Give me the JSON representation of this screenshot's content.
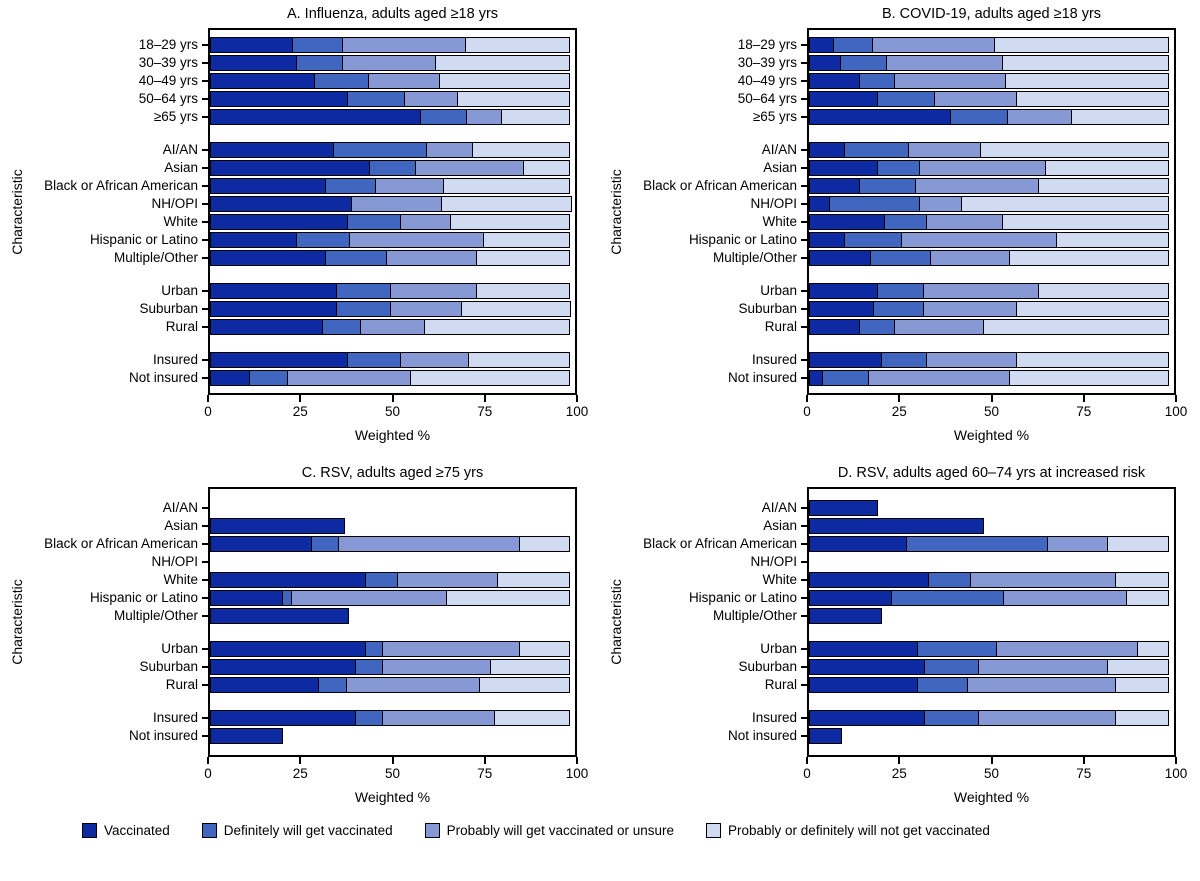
{
  "colors": {
    "vaccinated": "#0d2aa3",
    "definitely_will": "#4066c0",
    "probably_unsure": "#8799d4",
    "will_not": "#d0daf0",
    "bar_border": "#000000"
  },
  "legend": [
    {
      "label": "Vaccinated",
      "color_key": "vaccinated"
    },
    {
      "label": "Definitely will get vaccinated",
      "color_key": "definitely_will"
    },
    {
      "label": "Probably will get vaccinated or unsure",
      "color_key": "probably_unsure"
    },
    {
      "label": "Probably or definitely will not get vaccinated",
      "color_key": "will_not"
    }
  ],
  "chart_data": [
    {
      "type": "bar",
      "stacked": true,
      "orientation": "horizontal",
      "title": "A. Influenza, adults aged ≥18 yrs",
      "xlabel": "Weighted %",
      "ylabel": "Characteristic",
      "xlim": [
        0,
        100
      ],
      "xticks": [
        0,
        25,
        50,
        75,
        100
      ],
      "series_labels": [
        "Vaccinated",
        "Definitely will get vaccinated",
        "Probably will get vaccinated or unsure",
        "Probably or definitely will not get vaccinated"
      ],
      "groups": [
        {
          "rows": [
            {
              "label": "18–29 yrs",
              "values": [
                23,
                14,
                34,
                29
              ]
            },
            {
              "label": "30–39 yrs",
              "values": [
                24,
                13,
                26,
                37
              ]
            },
            {
              "label": "40–49 yrs",
              "values": [
                29,
                15,
                20,
                36
              ]
            },
            {
              "label": "50–64 yrs",
              "values": [
                38,
                16,
                15,
                31
              ]
            },
            {
              "label": "≥65 yrs",
              "values": [
                58,
                13,
                10,
                19
              ]
            }
          ]
        },
        {
          "rows": [
            {
              "label": "AI/AN",
              "values": [
                34,
                26,
                13,
                27
              ]
            },
            {
              "label": "Asian",
              "values": [
                44,
                13,
                30,
                13
              ]
            },
            {
              "label": "Black or African American",
              "values": [
                32,
                14,
                19,
                35
              ]
            },
            {
              "label": "NH/OPI",
              "values": [
                39,
                0,
                25,
                36
              ]
            },
            {
              "label": "White",
              "values": [
                38,
                15,
                14,
                33
              ]
            },
            {
              "label": "Hispanic or Latino",
              "values": [
                24,
                15,
                37,
                24
              ]
            },
            {
              "label": "Multiple/Other",
              "values": [
                32,
                17,
                25,
                26
              ]
            }
          ]
        },
        {
          "rows": [
            {
              "label": "Urban",
              "values": [
                35,
                15,
                24,
                26
              ]
            },
            {
              "label": "Suburban",
              "values": [
                35,
                15,
                20,
                30
              ]
            },
            {
              "label": "Rural",
              "values": [
                31,
                11,
                18,
                40
              ]
            }
          ]
        },
        {
          "rows": [
            {
              "label": "Insured",
              "values": [
                38,
                15,
                19,
                28
              ]
            },
            {
              "label": "Not insured",
              "values": [
                11,
                11,
                34,
                44
              ]
            }
          ]
        }
      ]
    },
    {
      "type": "bar",
      "stacked": true,
      "orientation": "horizontal",
      "title": "B. COVID-19, adults aged ≥18 yrs",
      "xlabel": "Weighted %",
      "ylabel": "Characteristic",
      "xlim": [
        0,
        100
      ],
      "xticks": [
        0,
        25,
        50,
        75,
        100
      ],
      "series_labels": [
        "Vaccinated",
        "Definitely will get vaccinated",
        "Probably will get vaccinated or unsure",
        "Probably or definitely will not get vaccinated"
      ],
      "groups": [
        {
          "rows": [
            {
              "label": "18–29 yrs",
              "values": [
                7,
                11,
                34,
                48
              ]
            },
            {
              "label": "30–39 yrs",
              "values": [
                9,
                13,
                32,
                46
              ]
            },
            {
              "label": "40–49 yrs",
              "values": [
                14,
                10,
                31,
                45
              ]
            },
            {
              "label": "50–64 yrs",
              "values": [
                19,
                16,
                23,
                42
              ]
            },
            {
              "label": "≥65 yrs",
              "values": [
                39,
                16,
                18,
                27
              ]
            }
          ]
        },
        {
          "rows": [
            {
              "label": "AI/AN",
              "values": [
                10,
                18,
                20,
                52
              ]
            },
            {
              "label": "Asian",
              "values": [
                19,
                12,
                35,
                34
              ]
            },
            {
              "label": "Black or African American",
              "values": [
                14,
                16,
                34,
                36
              ]
            },
            {
              "label": "NH/OPI",
              "values": [
                6,
                25,
                12,
                57
              ]
            },
            {
              "label": "White",
              "values": [
                21,
                12,
                21,
                46
              ]
            },
            {
              "label": "Hispanic or Latino",
              "values": [
                10,
                16,
                43,
                31
              ]
            },
            {
              "label": "Multiple/Other",
              "values": [
                17,
                17,
                22,
                44
              ]
            }
          ]
        },
        {
          "rows": [
            {
              "label": "Urban",
              "values": [
                19,
                13,
                32,
                36
              ]
            },
            {
              "label": "Suburban",
              "values": [
                18,
                14,
                26,
                42
              ]
            },
            {
              "label": "Rural",
              "values": [
                14,
                10,
                25,
                51
              ]
            }
          ]
        },
        {
          "rows": [
            {
              "label": "Insured",
              "values": [
                20,
                13,
                25,
                42
              ]
            },
            {
              "label": "Not insured",
              "values": [
                4,
                13,
                39,
                44
              ]
            }
          ]
        }
      ]
    },
    {
      "type": "bar",
      "stacked": true,
      "orientation": "horizontal",
      "title": "C. RSV, adults aged ≥75 yrs",
      "xlabel": "Weighted %",
      "ylabel": "Characteristic",
      "xlim": [
        0,
        100
      ],
      "xticks": [
        0,
        25,
        50,
        75,
        100
      ],
      "series_labels": [
        "Vaccinated",
        "Definitely will get vaccinated",
        "Probably will get vaccinated or unsure",
        "Probably or definitely will not get vaccinated"
      ],
      "groups": [
        {
          "rows": [
            {
              "label": "AI/AN",
              "values": []
            },
            {
              "label": "Asian",
              "values": [
                37
              ]
            },
            {
              "label": "Black or African American",
              "values": [
                28,
                8,
                50,
                14
              ]
            },
            {
              "label": "NH/OPI",
              "values": []
            },
            {
              "label": "White",
              "values": [
                43,
                9,
                28,
                20
              ]
            },
            {
              "label": "Hispanic or Latino",
              "values": [
                20,
                3,
                43,
                34
              ]
            },
            {
              "label": "Multiple/Other",
              "values": [
                38
              ]
            }
          ]
        },
        {
          "rows": [
            {
              "label": "Urban",
              "values": [
                43,
                5,
                38,
                14
              ]
            },
            {
              "label": "Suburban",
              "values": [
                40,
                8,
                30,
                22
              ]
            },
            {
              "label": "Rural",
              "values": [
                30,
                8,
                37,
                25
              ]
            }
          ]
        },
        {
          "rows": [
            {
              "label": "Insured",
              "values": [
                40,
                8,
                31,
                21
              ]
            },
            {
              "label": "Not insured",
              "values": [
                20
              ]
            }
          ]
        }
      ]
    },
    {
      "type": "bar",
      "stacked": true,
      "orientation": "horizontal",
      "title": "D. RSV, adults aged 60–74 yrs at increased risk",
      "xlabel": "Weighted %",
      "ylabel": "Characteristic",
      "xlim": [
        0,
        100
      ],
      "xticks": [
        0,
        25,
        50,
        75,
        100
      ],
      "series_labels": [
        "Vaccinated",
        "Definitely will get vaccinated",
        "Probably will get vaccinated or unsure",
        "Probably or definitely will not get vaccinated"
      ],
      "groups": [
        {
          "rows": [
            {
              "label": "AI/AN",
              "values": [
                19
              ]
            },
            {
              "label": "Asian",
              "values": [
                48
              ]
            },
            {
              "label": "Black or African American",
              "values": [
                27,
                39,
                17,
                17
              ]
            },
            {
              "label": "NH/OPI",
              "values": []
            },
            {
              "label": "White",
              "values": [
                33,
                12,
                40,
                15
              ]
            },
            {
              "label": "Hispanic or Latino",
              "values": [
                23,
                31,
                34,
                12
              ]
            },
            {
              "label": "Multiple/Other",
              "values": [
                20
              ]
            }
          ]
        },
        {
          "rows": [
            {
              "label": "Urban",
              "values": [
                30,
                22,
                39,
                9
              ]
            },
            {
              "label": "Suburban",
              "values": [
                32,
                15,
                36,
                17
              ]
            },
            {
              "label": "Rural",
              "values": [
                30,
                14,
                41,
                15
              ]
            }
          ]
        },
        {
          "rows": [
            {
              "label": "Insured",
              "values": [
                32,
                15,
                38,
                15
              ]
            },
            {
              "label": "Not insured",
              "values": [
                9
              ]
            }
          ]
        }
      ]
    }
  ]
}
